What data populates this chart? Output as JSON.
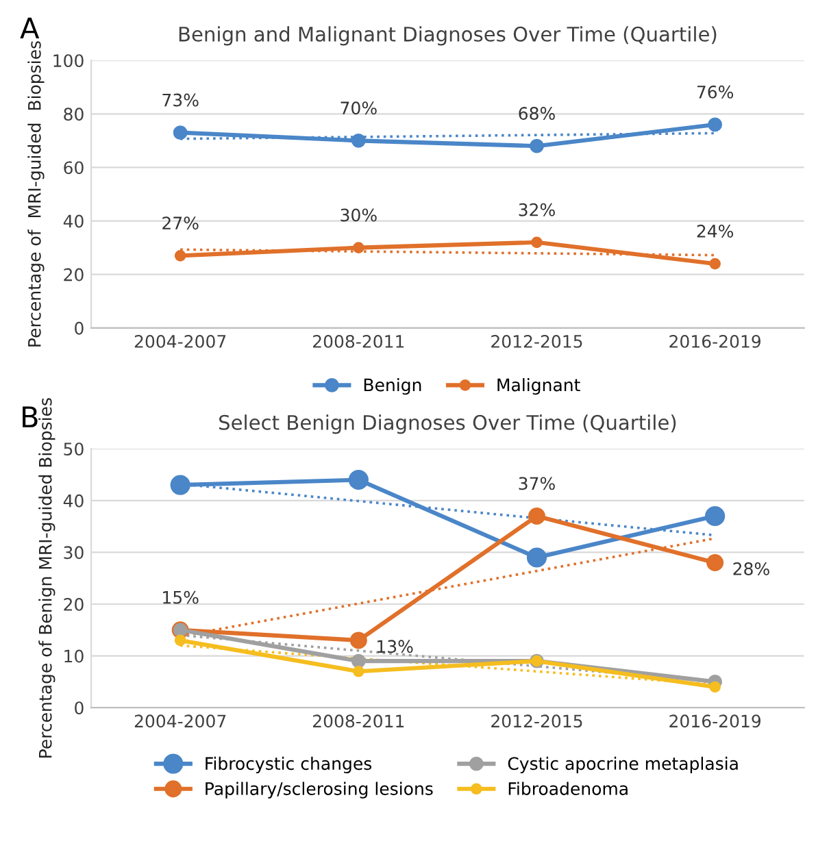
{
  "chart_data": [
    {
      "type": "line",
      "title": "Benign and Malignant Diagnoses Over Time (Quartile)",
      "ylabel": "Percentage of  MRI-guided  Biopsies",
      "annotations": [
        "A"
      ],
      "categories": [
        "2004-2007",
        "2008-2011",
        "2012-2015",
        "2016-2019"
      ],
      "ylim": [
        0,
        100
      ],
      "yticks": [
        0,
        20,
        40,
        60,
        80,
        100
      ],
      "grid": "y",
      "legend": "bottom",
      "marker": "circle",
      "line_style": "solid",
      "series": [
        {
          "name": "Benign",
          "color": "#4a86c8",
          "values": [
            73,
            70,
            68,
            76
          ],
          "value_labels": [
            "73%",
            "70%",
            "68%",
            "76%"
          ]
        },
        {
          "name": "Malignant",
          "color": "#e0702a",
          "values": [
            27,
            30,
            32,
            24
          ],
          "value_labels": [
            "27%",
            "30%",
            "32%",
            "24%"
          ]
        },
        {
          "color": "#4a86c8",
          "values": [
            70.7,
            71.4,
            72.1,
            72.8
          ],
          "marker": "none",
          "line_style": "dotted"
        },
        {
          "color": "#e0702a",
          "values": [
            29.3,
            28.6,
            27.9,
            27.2
          ],
          "marker": "none",
          "line_style": "dotted"
        }
      ]
    },
    {
      "type": "line",
      "title": "Select Benign Diagnoses Over Time (Quartile)",
      "ylabel": "Percentage of Benign MRI-guided Biopsies",
      "annotations": [
        "B"
      ],
      "categories": [
        "2004-2007",
        "2008-2011",
        "2012-2015",
        "2016-2019"
      ],
      "ylim": [
        0,
        50
      ],
      "yticks": [
        0,
        10,
        20,
        30,
        40,
        50
      ],
      "grid": "y",
      "legend": "bottom",
      "marker": "circle",
      "line_style": "solid",
      "series": [
        {
          "name": "Fibrocystic changes",
          "color": "#4a86c8",
          "values": [
            43,
            44,
            29,
            37
          ]
        },
        {
          "name": "Papillary/sclerosing lesions",
          "color": "#e0702a",
          "values": [
            15,
            13,
            37,
            28
          ],
          "value_labels": [
            "15%",
            "13%",
            "37%",
            "28%"
          ]
        },
        {
          "name": "Cystic apocrine metaplasia",
          "color": "#a0a0a0",
          "values": [
            15,
            9,
            9,
            5
          ]
        },
        {
          "name": "Fibroadenoma",
          "color": "#f5bd1f",
          "values": [
            13,
            7,
            9,
            4
          ]
        },
        {
          "color": "#4a86c8",
          "values": [
            43.2,
            39.9,
            36.6,
            33.3
          ],
          "marker": "none",
          "line_style": "dotted"
        },
        {
          "color": "#e0702a",
          "values": [
            13.8,
            20.1,
            26.4,
            32.7
          ],
          "marker": "none",
          "line_style": "dotted"
        },
        {
          "color": "#a0a0a0",
          "values": [
            14,
            11,
            8,
            5
          ],
          "marker": "none",
          "line_style": "dotted"
        },
        {
          "color": "#f5bd1f",
          "values": [
            12.0,
            9.5,
            7.0,
            4.5
          ],
          "marker": "none",
          "line_style": "dotted"
        }
      ]
    }
  ]
}
